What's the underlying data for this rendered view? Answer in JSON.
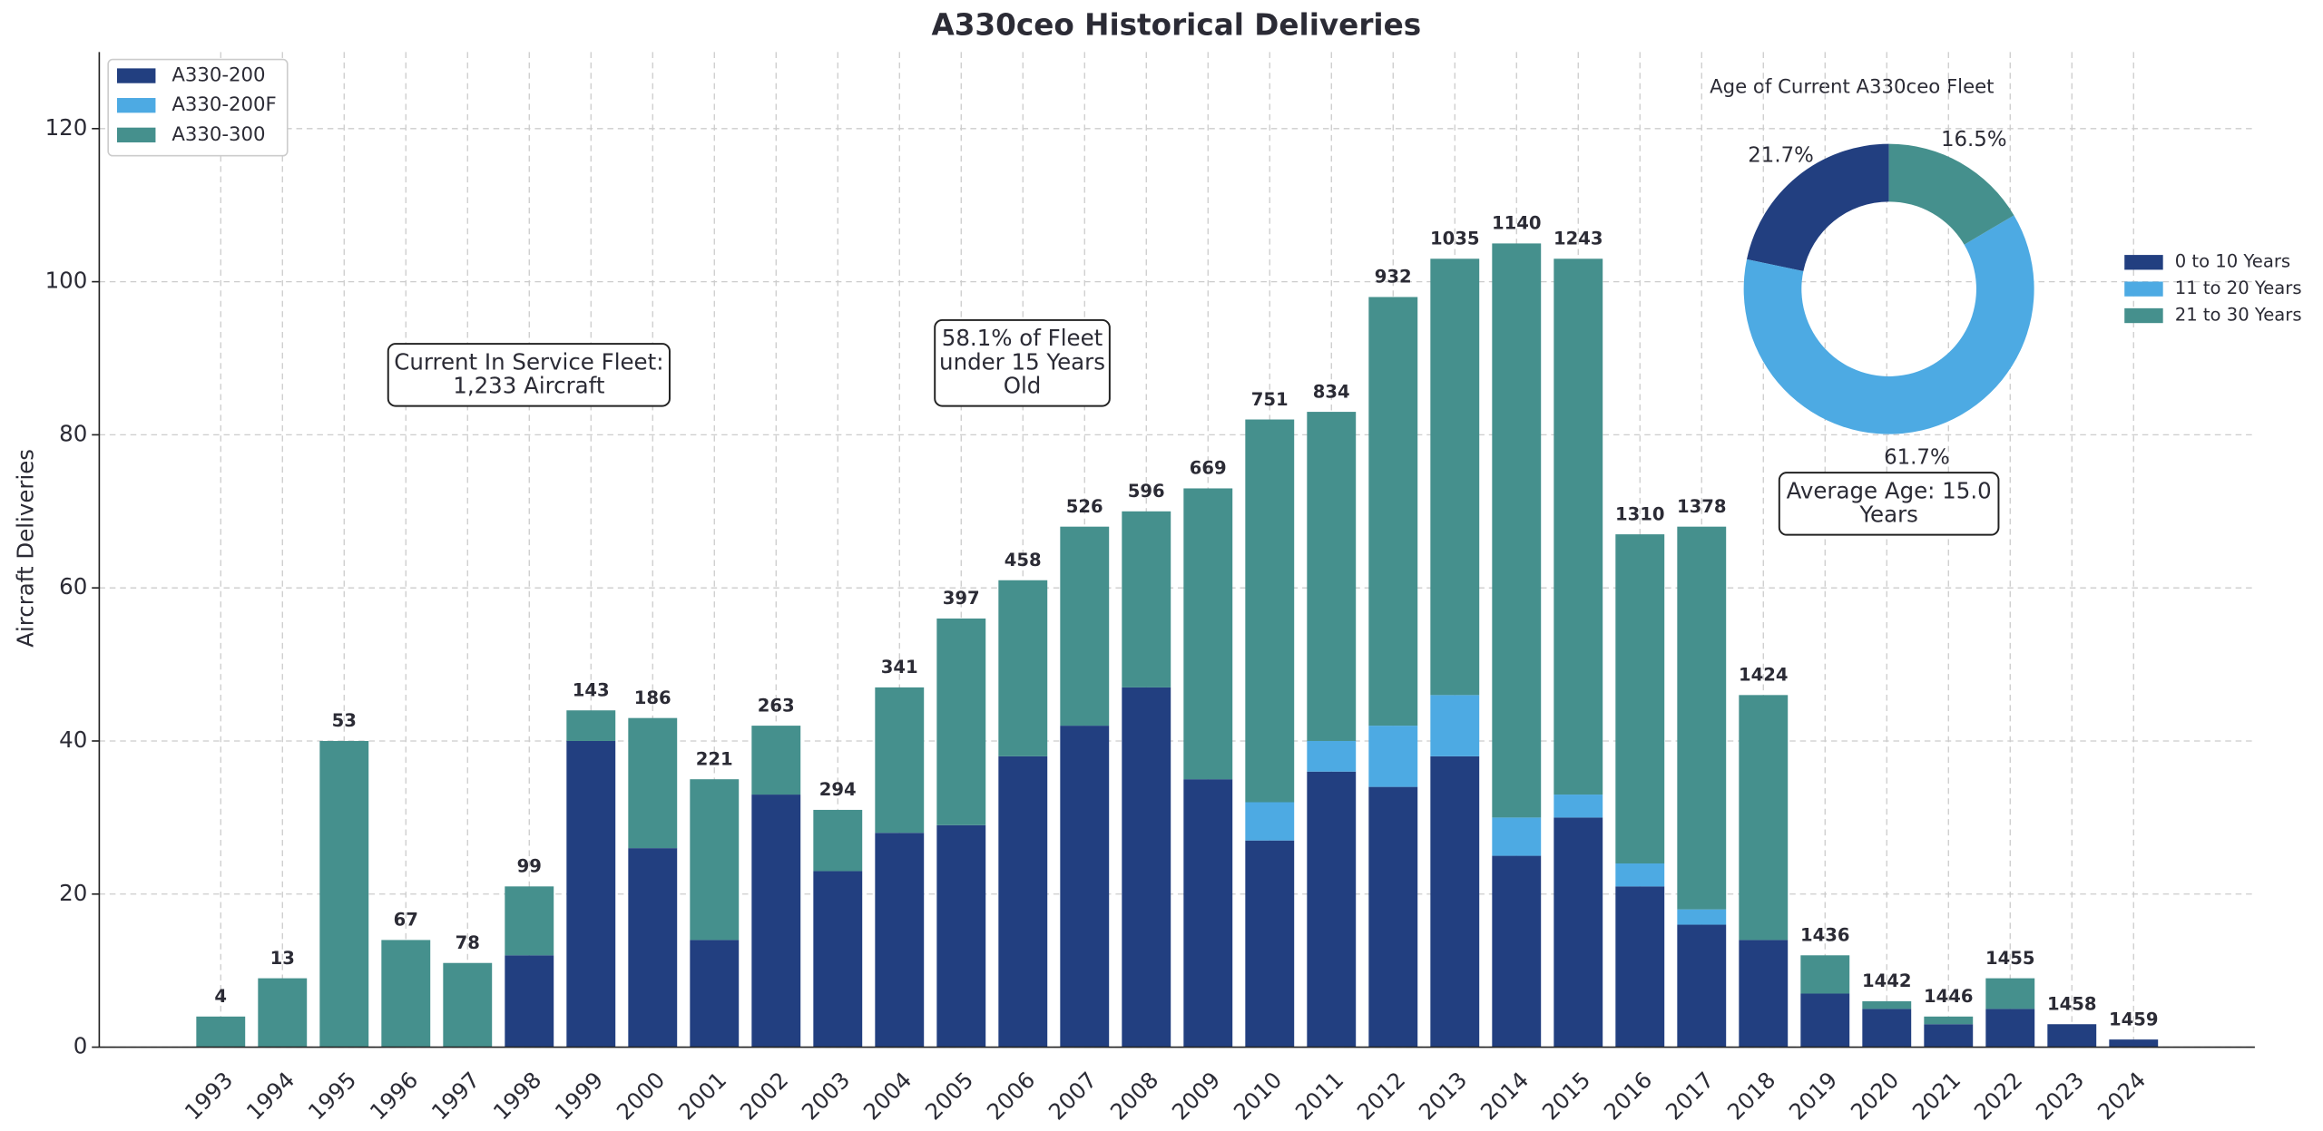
{
  "chart_data": [
    {
      "type": "bar",
      "stacked": true,
      "title": "A330ceo Historical Deliveries",
      "ylabel": "Aircraft Deliveries",
      "categories": [
        "1993",
        "1994",
        "1995",
        "1996",
        "1997",
        "1998",
        "1999",
        "2000",
        "2001",
        "2002",
        "2003",
        "2004",
        "2005",
        "2006",
        "2007",
        "2008",
        "2009",
        "2010",
        "2011",
        "2012",
        "2013",
        "2014",
        "2015",
        "2016",
        "2017",
        "2018",
        "2019",
        "2020",
        "2021",
        "2022",
        "2023",
        "2024"
      ],
      "series": [
        {
          "name": "A330-200",
          "color": "#223f80",
          "values": [
            0,
            0,
            0,
            0,
            0,
            12,
            40,
            26,
            14,
            33,
            23,
            28,
            29,
            38,
            42,
            47,
            35,
            27,
            36,
            34,
            38,
            25,
            30,
            21,
            16,
            14,
            7,
            5,
            3,
            5,
            3,
            1
          ]
        },
        {
          "name": "A330-200F",
          "color": "#4daae3",
          "values": [
            0,
            0,
            0,
            0,
            0,
            0,
            0,
            0,
            0,
            0,
            0,
            0,
            0,
            0,
            0,
            0,
            0,
            5,
            4,
            8,
            8,
            5,
            3,
            3,
            2,
            0,
            0,
            0,
            0,
            0,
            0,
            0
          ]
        },
        {
          "name": "A330-300",
          "color": "#45908d",
          "values": [
            4,
            9,
            40,
            14,
            11,
            9,
            4,
            17,
            21,
            9,
            8,
            19,
            27,
            23,
            26,
            23,
            38,
            50,
            43,
            56,
            57,
            75,
            70,
            43,
            50,
            32,
            5,
            1,
            1,
            4,
            0,
            0
          ]
        }
      ],
      "cumulative_labels": [
        4,
        13,
        53,
        67,
        78,
        99,
        143,
        186,
        221,
        263,
        294,
        341,
        397,
        458,
        526,
        596,
        669,
        751,
        834,
        932,
        1035,
        1140,
        1243,
        1310,
        1378,
        1424,
        1436,
        1442,
        1446,
        1455,
        1458,
        1459
      ],
      "ylim": [
        0,
        130
      ],
      "yticks": [
        0,
        20,
        40,
        60,
        80,
        100,
        120
      ],
      "grid": true,
      "legend": "upper left",
      "annotations": [
        [
          "Current In Service Fleet:",
          "1,233 Aircraft"
        ],
        [
          "58.1% of Fleet",
          "under 15 Years",
          "Old"
        ],
        [
          "Average Age: 15.0",
          "Years"
        ]
      ]
    },
    {
      "type": "pie",
      "donut": true,
      "title": "Age of Current A330ceo Fleet",
      "categories": [
        "0 to 10 Years",
        "11 to 20 Years",
        "21 to 30 Years"
      ],
      "values": [
        21.7,
        61.7,
        16.5
      ],
      "value_labels": [
        "21.7%",
        "61.7%",
        "16.5%"
      ],
      "colors": [
        "#223f80",
        "#4daae3",
        "#45908d"
      ],
      "legend": "right"
    }
  ]
}
